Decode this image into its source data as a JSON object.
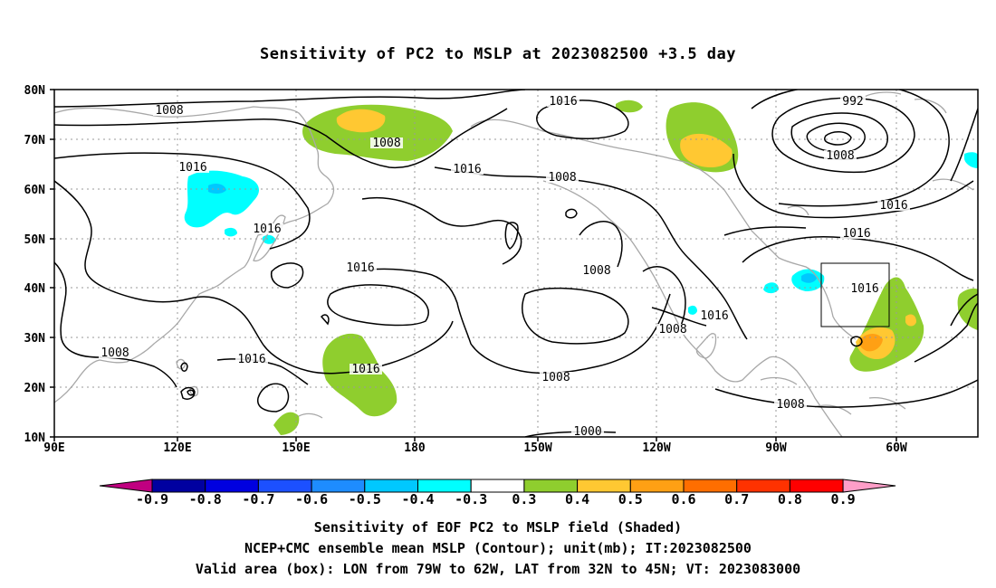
{
  "title": "Sensitivity of PC2 to MSLP at 2023082500 +3.5 day",
  "captions": [
    "Sensitivity of EOF PC2 to MSLP field (Shaded)",
    "NCEP+CMC ensemble mean MSLP (Contour); unit(mb); IT:2023082500",
    "Valid area (box): LON from 79W to 62W, LAT from 32N to 45N; VT: 2023083000"
  ],
  "lon_labels": [
    "90E",
    "120E",
    "150E",
    "180",
    "150W",
    "120W",
    "90W",
    "60W"
  ],
  "lat_labels": [
    "80N",
    "70N",
    "60N",
    "50N",
    "40N",
    "30N",
    "20N",
    "10N"
  ],
  "contour_labels": [
    "1008",
    "1008",
    "1016",
    "1016",
    "1016",
    "1008",
    "1016",
    "1016",
    "1016",
    "1008",
    "1016",
    "1008",
    "1016",
    "1008",
    "1008",
    "1000",
    "992",
    "1008",
    "1016",
    "1016",
    "1016",
    "1008"
  ],
  "colorbar": {
    "labels": [
      "-0.9",
      "-0.8",
      "-0.7",
      "-0.6",
      "-0.5",
      "-0.4",
      "-0.3",
      "0.3",
      "0.4",
      "0.5",
      "0.6",
      "0.7",
      "0.8",
      "0.9"
    ],
    "colors": [
      "#c00080",
      "#0000a0",
      "#0000e0",
      "#1c50ff",
      "#1e8cff",
      "#00c8ff",
      "#00ffff",
      "#ffffff",
      "#8fce2e",
      "#ffc832",
      "#ffa014",
      "#ff6e00",
      "#ff3200",
      "#ff0000",
      "#ff9ec8"
    ]
  }
}
